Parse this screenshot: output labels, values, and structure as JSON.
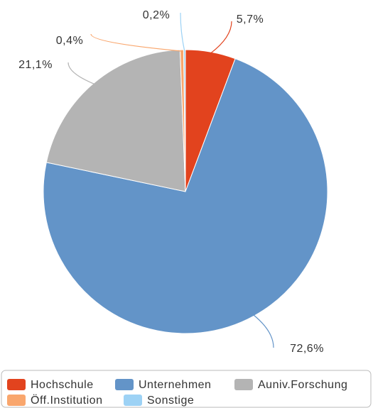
{
  "chart_data": {
    "type": "pie",
    "categories": [
      "Hochschule",
      "Unternehmen",
      "Auniv.Forschung",
      "Öff.Institution",
      "Sonstige"
    ],
    "values": [
      5.7,
      72.6,
      21.1,
      0.4,
      0.2
    ],
    "value_labels": [
      "5,7%",
      "72,6%",
      "21,1%",
      "0,4%",
      "0,2%"
    ],
    "colors": [
      "#e2431e",
      "#6394c8",
      "#b4b4b4",
      "#f9a66d",
      "#9dd2f5"
    ],
    "legend": "bottom"
  }
}
